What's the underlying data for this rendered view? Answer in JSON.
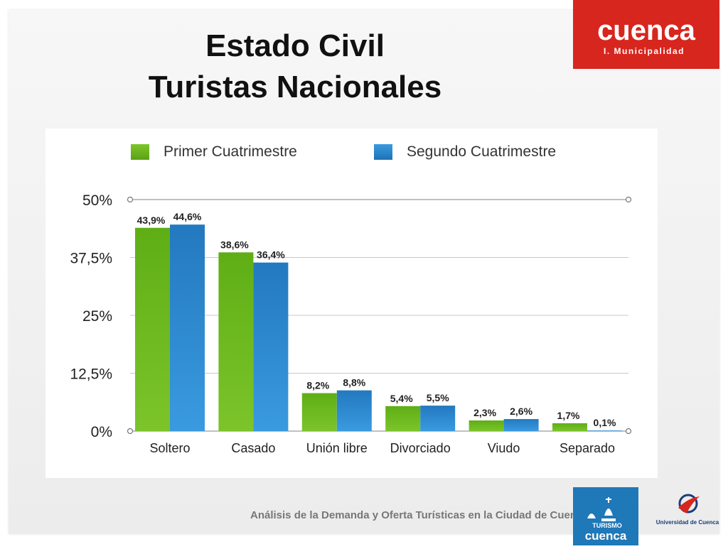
{
  "title": {
    "line1": "Estado Civil",
    "line2": "Turistas Nacionales"
  },
  "logos": {
    "municipal": {
      "name": "cuenca",
      "subtitle": "I. Municipalidad"
    },
    "turismo": {
      "line1": "TURISMO",
      "line2": "cuenca"
    },
    "universidad": "Universidad de Cuenca"
  },
  "footer": "Análisis de la Demanda y Oferta Turísticas en la Ciudad de Cuenca",
  "colors": {
    "primer": "#6db61c",
    "segundo": "#2e8bd0",
    "municipal_red": "#d7261e",
    "turismo_blue": "#1f78b8"
  },
  "chart_data": {
    "type": "bar",
    "categories": [
      "Soltero",
      "Casado",
      "Unión libre",
      "Divorciado",
      "Viudo",
      "Separado"
    ],
    "series": [
      {
        "name": "Primer Cuatrimestre",
        "values": [
          43.9,
          38.6,
          8.2,
          5.4,
          2.3,
          1.7
        ],
        "labels": [
          "43,9%",
          "38,6%",
          "8,2%",
          "5,4%",
          "2,3%",
          "1,7%"
        ]
      },
      {
        "name": "Segundo Cuatrimestre",
        "values": [
          44.6,
          36.4,
          8.8,
          5.5,
          2.6,
          0.1
        ],
        "labels": [
          "44,6%",
          "36,4%",
          "8,8%",
          "5,5%",
          "2,6%",
          "0,1%"
        ]
      }
    ],
    "yticks": [
      "0%",
      "12,5%",
      "25%",
      "37,5%",
      "50%"
    ],
    "ylim": [
      0,
      50
    ],
    "grid": true,
    "legend_position": "top"
  }
}
